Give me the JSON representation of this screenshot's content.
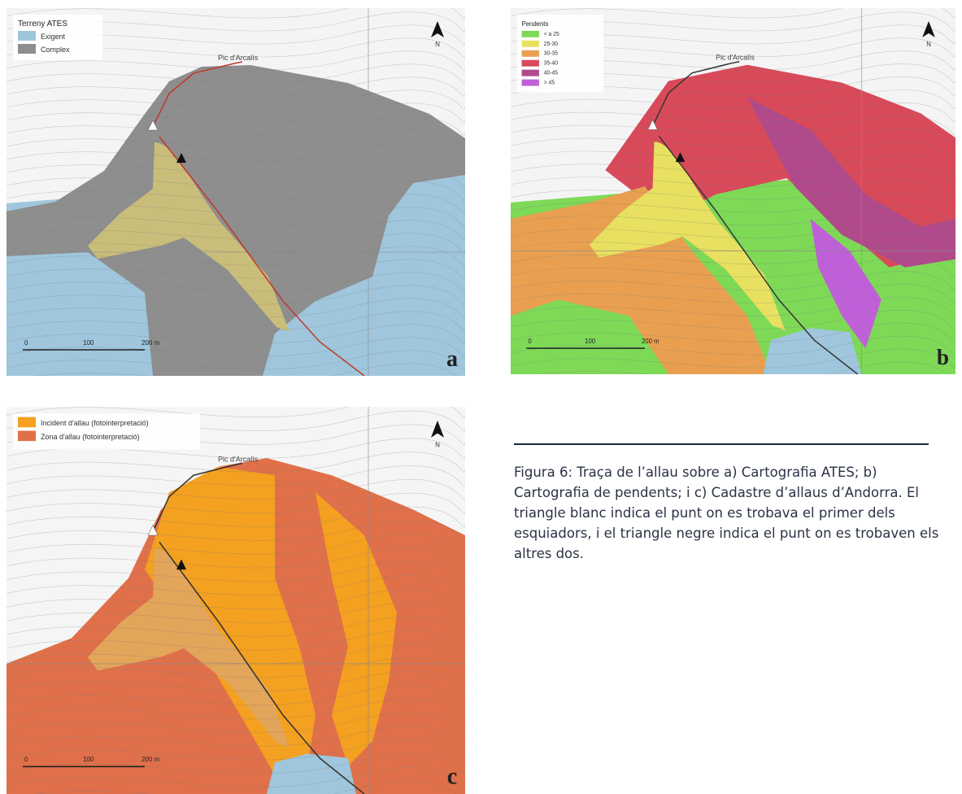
{
  "panels": [
    {
      "letter": "a",
      "north": "N",
      "peak": "Pic d'Arcalís",
      "legend": {
        "title": "Terreny ATES",
        "items": [
          "Exigent",
          "Complex"
        ]
      },
      "scale": [
        "0",
        "100",
        "200 m"
      ]
    },
    {
      "letter": "b",
      "north": "N",
      "peak": "Pic d'Arcalís",
      "legend": {
        "title": "Pendents",
        "items": [
          "< a 25",
          "25-30",
          "30-35",
          "35-40",
          "40-45",
          "> 45"
        ]
      },
      "scale": [
        "0",
        "100",
        "200 m"
      ]
    },
    {
      "letter": "c",
      "north": "N",
      "peak": "Pic d'Arcalís",
      "legend": {
        "items": [
          "Incident d'allau (fotointerpretació)",
          "Zona d'allau (fotointerpretació)"
        ]
      },
      "scale": [
        "0",
        "100",
        "200 m"
      ]
    }
  ],
  "caption": "Figura 6: Traça de l’allau sobre a) Cartografia ATES; b) Cartografia de pendents; i c) Cadastre d’allaus d’Andorra. El triangle blanc indica el punt on es trobava el primer dels esquiadors, i el triangle negre indica el punt on es trobaven els altres dos."
}
